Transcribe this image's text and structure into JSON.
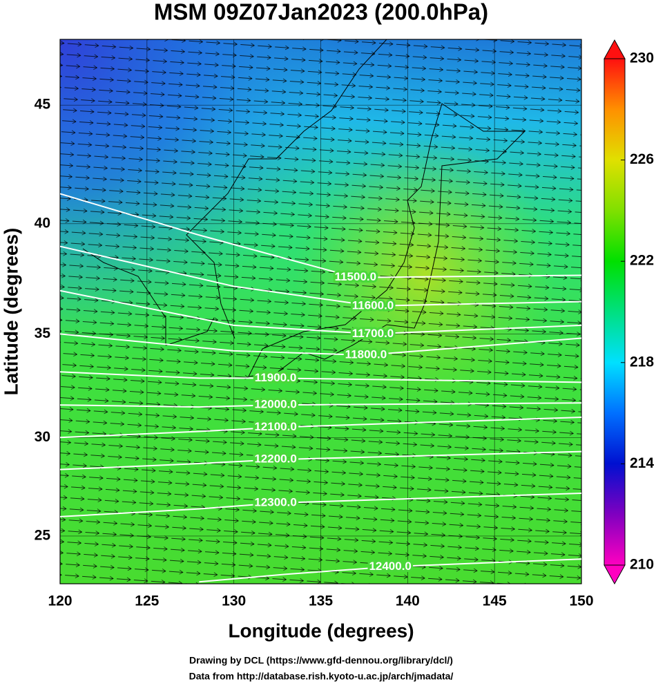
{
  "chart_data": {
    "type": "contour-map",
    "title": "MSM 09Z07Jan2023 (200.0hPa)",
    "x_label": "Longitude (degrees)",
    "y_label": "Latitude  (degrees)",
    "footer": [
      "Drawing by DCL (https://www.gfd-dennou.org/library/dcl/)",
      "Data from http://database.rish.kyoto-u.ac.jp/arch/jmadata/"
    ],
    "projection": "mercator",
    "grid": true,
    "xlim": [
      120,
      150
    ],
    "xticks": [
      120,
      125,
      130,
      135,
      140,
      145,
      150
    ],
    "ylim": [
      22.5,
      47.6
    ],
    "yticks": [
      25,
      30,
      35,
      40,
      45
    ],
    "contours": [
      {
        "label": "11500.0",
        "lon": [
          120,
          128,
          137,
          150
        ],
        "lat": [
          41.3,
          39.5,
          37.6,
          37.7
        ]
      },
      {
        "label": "11600.0",
        "lon": [
          120,
          130,
          138,
          150
        ],
        "lat": [
          39.0,
          37.2,
          36.3,
          36.5
        ]
      },
      {
        "label": "11700.0",
        "lon": [
          120,
          130,
          138,
          150
        ],
        "lat": [
          37.0,
          35.4,
          35.0,
          35.4
        ]
      },
      {
        "label": "11800.0",
        "lon": [
          120,
          130,
          137.6,
          150
        ],
        "lat": [
          35.0,
          34.2,
          34.0,
          34.8
        ]
      },
      {
        "label": "11900.0",
        "lon": [
          120,
          128,
          132.4,
          150
        ],
        "lat": [
          33.2,
          32.9,
          32.9,
          32.7
        ]
      },
      {
        "label": "12000.0",
        "lon": [
          120,
          128,
          132.4,
          150
        ],
        "lat": [
          31.6,
          31.5,
          31.6,
          31.7
        ]
      },
      {
        "label": "12100.0",
        "lon": [
          120,
          128,
          132.4,
          150
        ],
        "lat": [
          30.0,
          30.3,
          30.5,
          31.0
        ]
      },
      {
        "label": "12200.0",
        "lon": [
          120,
          128,
          132.4,
          150
        ],
        "lat": [
          28.4,
          28.7,
          28.9,
          29.3
        ]
      },
      {
        "label": "12300.0",
        "lon": [
          120,
          128,
          132.4,
          150
        ],
        "lat": [
          26.0,
          26.4,
          26.7,
          27.2
        ]
      },
      {
        "label": "12400.0",
        "lon": [
          128,
          133,
          139,
          150
        ],
        "lat": [
          22.6,
          23.0,
          23.4,
          23.8
        ]
      }
    ],
    "colorbar": {
      "lim": [
        210,
        230
      ],
      "ticks": [
        210,
        214,
        218,
        222,
        226,
        230
      ],
      "colors": [
        "#ff00c0",
        "#8000c0",
        "#0010d0",
        "#0070ff",
        "#00e0ff",
        "#00e080",
        "#00e000",
        "#80e000",
        "#e0e000",
        "#ff9000",
        "#ff1010"
      ]
    }
  }
}
